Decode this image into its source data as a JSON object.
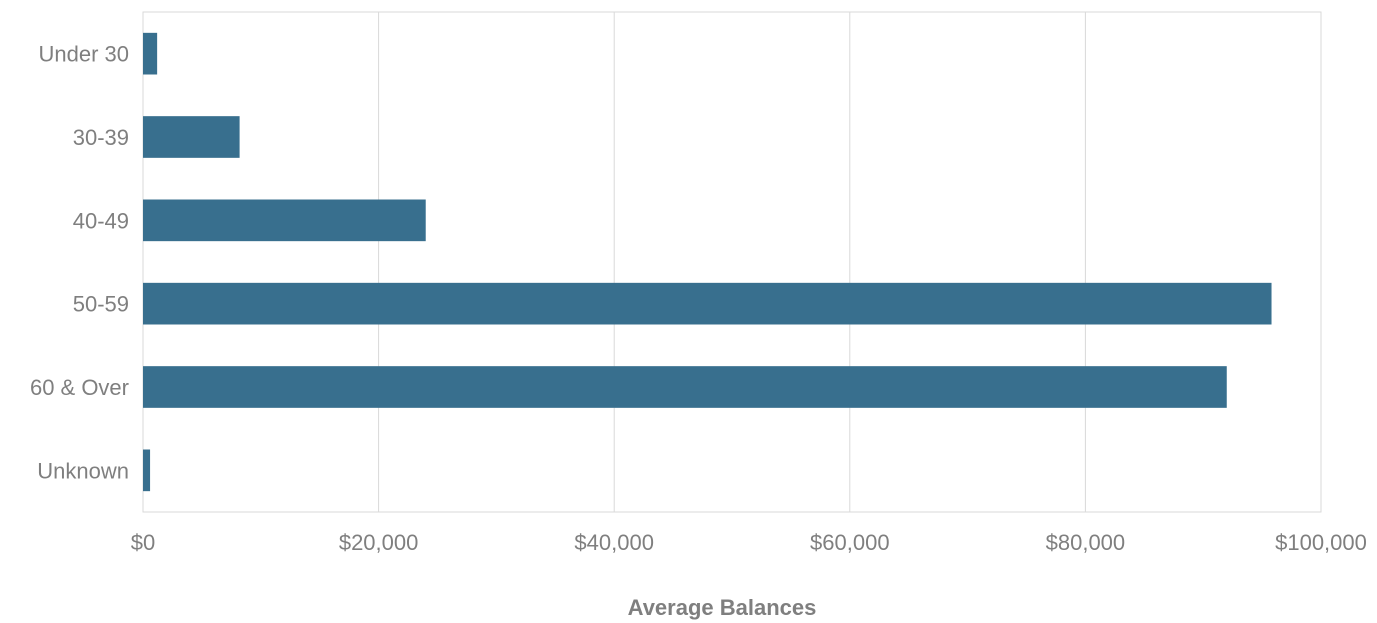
{
  "chart_data": {
    "type": "bar",
    "orientation": "horizontal",
    "title": "",
    "xlabel": "Average Balances",
    "ylabel": "",
    "categories": [
      "Under 30",
      "30-39",
      "40-49",
      "50-59",
      "60 & Over",
      "Unknown"
    ],
    "values": [
      1200,
      8200,
      24000,
      95800,
      92000,
      600
    ],
    "xlim": [
      0,
      100000
    ],
    "x_ticks": [
      0,
      20000,
      40000,
      60000,
      80000,
      100000
    ],
    "x_tick_labels": [
      "$0",
      "$20,000",
      "$40,000",
      "$60,000",
      "$80,000",
      "$100,000"
    ],
    "grid": "vertical",
    "legend": "none",
    "bar_color": "#386f8e",
    "grid_color": "#d9d9d9",
    "text_color": "#7f7f7f"
  }
}
